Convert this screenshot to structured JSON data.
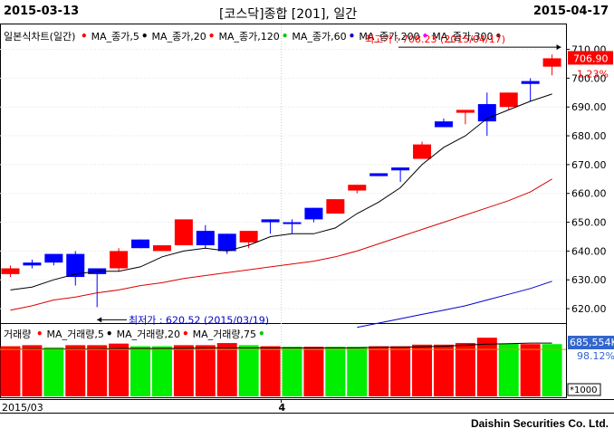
{
  "header": {
    "start_date": "2015-03-13",
    "title": "[코스닥]종합 [201], 일간",
    "end_date": "2015-04-17"
  },
  "price_legend": {
    "label": "일본식차트(일간)",
    "items": [
      {
        "label": "MA_종가,5",
        "color": "#ff0000"
      },
      {
        "label": "MA_종가,20",
        "color": "#000000"
      },
      {
        "label": "MA_종가,120",
        "color": "#ff0000"
      },
      {
        "label": "MA_종가,60",
        "color": "#00cc00"
      },
      {
        "label": "MA_종가,200",
        "color": "#0000cc"
      },
      {
        "label": "MA_종가,300",
        "color": "#ff00ff"
      },
      {
        "label": "",
        "color": "#880000"
      }
    ]
  },
  "volume_legend": {
    "label": "거래량",
    "items": [
      {
        "label": "MA_거래량,5",
        "color": "#ff0000"
      },
      {
        "label": "MA_거래량,20",
        "color": "#000000"
      },
      {
        "label": "MA_거래량,75",
        "color": "#ff0000"
      },
      {
        "label": "",
        "color": "#00cc00"
      }
    ]
  },
  "annotations": {
    "high": "최고가 : 708.23 (2015/04/17)",
    "low": "최저가 : 620.52 (2015/03/19)",
    "last_price": "706.90",
    "change_pct": "1.23%",
    "last_volume": "685,554K",
    "volume_pct": "98.12%",
    "volume_unit": "*1000"
  },
  "x_labels": [
    "2015/03",
    "4"
  ],
  "footer": "Daishin Securities Co. Ltd.",
  "chart_data": {
    "type": "candlestick",
    "y_ticks": [
      620,
      630,
      640,
      650,
      660,
      670,
      680,
      690,
      700,
      710
    ],
    "ylim": [
      615,
      713
    ],
    "candles": [
      {
        "date": "2015/03/13",
        "open": 632,
        "high": 635,
        "low": 631,
        "close": 634,
        "color": "red"
      },
      {
        "date": "2015/03/16",
        "open": 636,
        "high": 637,
        "low": 634,
        "close": 635,
        "color": "blue"
      },
      {
        "date": "2015/03/17",
        "open": 639,
        "high": 639,
        "low": 635,
        "close": 636,
        "color": "blue"
      },
      {
        "date": "2015/03/18",
        "open": 639,
        "high": 640,
        "low": 628,
        "close": 631,
        "color": "blue"
      },
      {
        "date": "2015/03/19",
        "open": 632,
        "high": 634,
        "low": 620.52,
        "close": 634,
        "color": "blue"
      },
      {
        "date": "2015/03/20",
        "open": 634,
        "high": 641,
        "low": 633,
        "close": 640,
        "color": "red"
      },
      {
        "date": "2015/03/23",
        "open": 644,
        "high": 644,
        "low": 641,
        "close": 641,
        "color": "blue"
      },
      {
        "date": "2015/03/24",
        "open": 642,
        "high": 642,
        "low": 640,
        "close": 640,
        "color": "red"
      },
      {
        "date": "2015/03/25",
        "open": 642,
        "high": 651,
        "low": 642,
        "close": 651,
        "color": "red"
      },
      {
        "date": "2015/03/26",
        "open": 647,
        "high": 649,
        "low": 641,
        "close": 642,
        "color": "blue"
      },
      {
        "date": "2015/03/27",
        "open": 646,
        "high": 646,
        "low": 639,
        "close": 640,
        "color": "blue"
      },
      {
        "date": "2015/03/30",
        "open": 643,
        "high": 647,
        "low": 641,
        "close": 647,
        "color": "red"
      },
      {
        "date": "2015/03/31",
        "open": 651,
        "high": 651,
        "low": 646,
        "close": 650,
        "color": "blue"
      },
      {
        "date": "2015/04/01",
        "open": 650,
        "high": 651,
        "low": 646,
        "close": 650,
        "color": "blue"
      },
      {
        "date": "2015/04/02",
        "open": 655,
        "high": 655,
        "low": 650,
        "close": 651,
        "color": "blue"
      },
      {
        "date": "2015/04/03",
        "open": 653,
        "high": 658,
        "low": 653,
        "close": 658,
        "color": "red"
      },
      {
        "date": "2015/04/06",
        "open": 661,
        "high": 663,
        "low": 660,
        "close": 663,
        "color": "red"
      },
      {
        "date": "2015/04/07",
        "open": 667,
        "high": 667,
        "low": 666,
        "close": 666,
        "color": "blue"
      },
      {
        "date": "2015/04/08",
        "open": 669,
        "high": 669,
        "low": 664,
        "close": 668,
        "color": "blue"
      },
      {
        "date": "2015/04/09",
        "open": 672,
        "high": 678,
        "low": 672,
        "close": 677,
        "color": "red"
      },
      {
        "date": "2015/04/10",
        "open": 685,
        "high": 686,
        "low": 683,
        "close": 683,
        "color": "blue"
      },
      {
        "date": "2015/04/13",
        "open": 688,
        "high": 689,
        "low": 684,
        "close": 689,
        "color": "red"
      },
      {
        "date": "2015/04/14",
        "open": 691,
        "high": 695,
        "low": 680,
        "close": 685,
        "color": "blue"
      },
      {
        "date": "2015/04/15",
        "open": 690,
        "high": 695,
        "low": 689,
        "close": 695,
        "color": "red"
      },
      {
        "date": "2015/04/16",
        "open": 699,
        "high": 700,
        "low": 692,
        "close": 698,
        "color": "blue"
      },
      {
        "date": "2015/04/17",
        "open": 704,
        "high": 708.23,
        "low": 701,
        "close": 706.9,
        "color": "red"
      }
    ],
    "series": [
      {
        "name": "MA_종가,5",
        "color": "#000000",
        "values": [
          626.5,
          627.5,
          630,
          632,
          633,
          633,
          634.5,
          638,
          640,
          641,
          640,
          642,
          645,
          646,
          646,
          648,
          653,
          657,
          662,
          670,
          676,
          680,
          686,
          689,
          692,
          694.5
        ]
      },
      {
        "name": "MA_종가,20",
        "color": "#dd0000",
        "values": [
          619.5,
          621,
          623,
          624,
          625.5,
          626.5,
          628,
          629,
          630.5,
          631.5,
          632.5,
          633.5,
          634.5,
          635.5,
          636.5,
          638,
          640,
          642.5,
          645,
          647.5,
          650,
          652.5,
          655,
          657.5,
          660.5,
          665
        ]
      },
      {
        "name": "MA_종가,60",
        "color": "#0000cc",
        "values": [
          null,
          null,
          null,
          null,
          null,
          null,
          null,
          null,
          null,
          null,
          null,
          null,
          null,
          null,
          null,
          null,
          613.5,
          615,
          616.5,
          618,
          619.5,
          621,
          623,
          625,
          627,
          629.5
        ]
      }
    ],
    "volume": {
      "values": [
        94,
        96,
        92,
        96,
        96,
        99,
        94,
        94,
        96,
        96,
        100,
        96,
        94,
        93,
        93,
        93,
        93,
        94,
        94,
        97,
        97,
        100,
        110,
        99,
        98,
        98
      ],
      "colors": [
        "red",
        "red",
        "green",
        "red",
        "red",
        "red",
        "green",
        "green",
        "red",
        "red",
        "red",
        "green",
        "red",
        "green",
        "red",
        "green",
        "green",
        "red",
        "red",
        "red",
        "red",
        "red",
        "red",
        "green",
        "red",
        "green"
      ],
      "ma_line": [
        88,
        89,
        89,
        89,
        89,
        90,
        90,
        90,
        90,
        91,
        91,
        91,
        91,
        91,
        91,
        91,
        91,
        92,
        92,
        93,
        94,
        96,
        98,
        99,
        100,
        100
      ]
    }
  }
}
